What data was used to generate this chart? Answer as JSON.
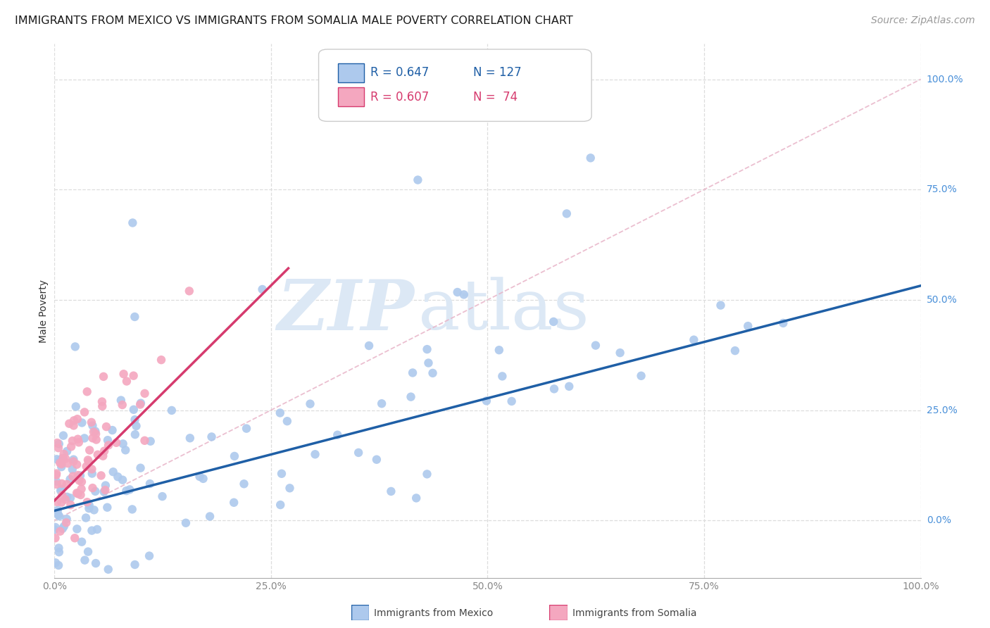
{
  "title": "IMMIGRANTS FROM MEXICO VS IMMIGRANTS FROM SOMALIA MALE POVERTY CORRELATION CHART",
  "source": "Source: ZipAtlas.com",
  "ylabel": "Male Poverty",
  "mexico_R": 0.647,
  "mexico_N": 127,
  "somalia_R": 0.607,
  "somalia_N": 74,
  "mexico_color": "#adc9ed",
  "mexico_line_color": "#1f5fa6",
  "somalia_color": "#f4a7bf",
  "somalia_line_color": "#d63b6e",
  "diagonal_color": "#e8b4c8",
  "background_color": "#ffffff",
  "grid_color": "#dddddd",
  "watermark_zip": "ZIP",
  "watermark_atlas": "atlas",
  "watermark_color": "#dce8f5",
  "title_fontsize": 11.5,
  "axis_label_fontsize": 10,
  "tick_label_fontsize": 10,
  "legend_fontsize": 12,
  "source_fontsize": 10,
  "right_label_color": "#4a90d9",
  "legend_blue_color": "#1f5fa6",
  "legend_pink_color": "#d63b6e"
}
